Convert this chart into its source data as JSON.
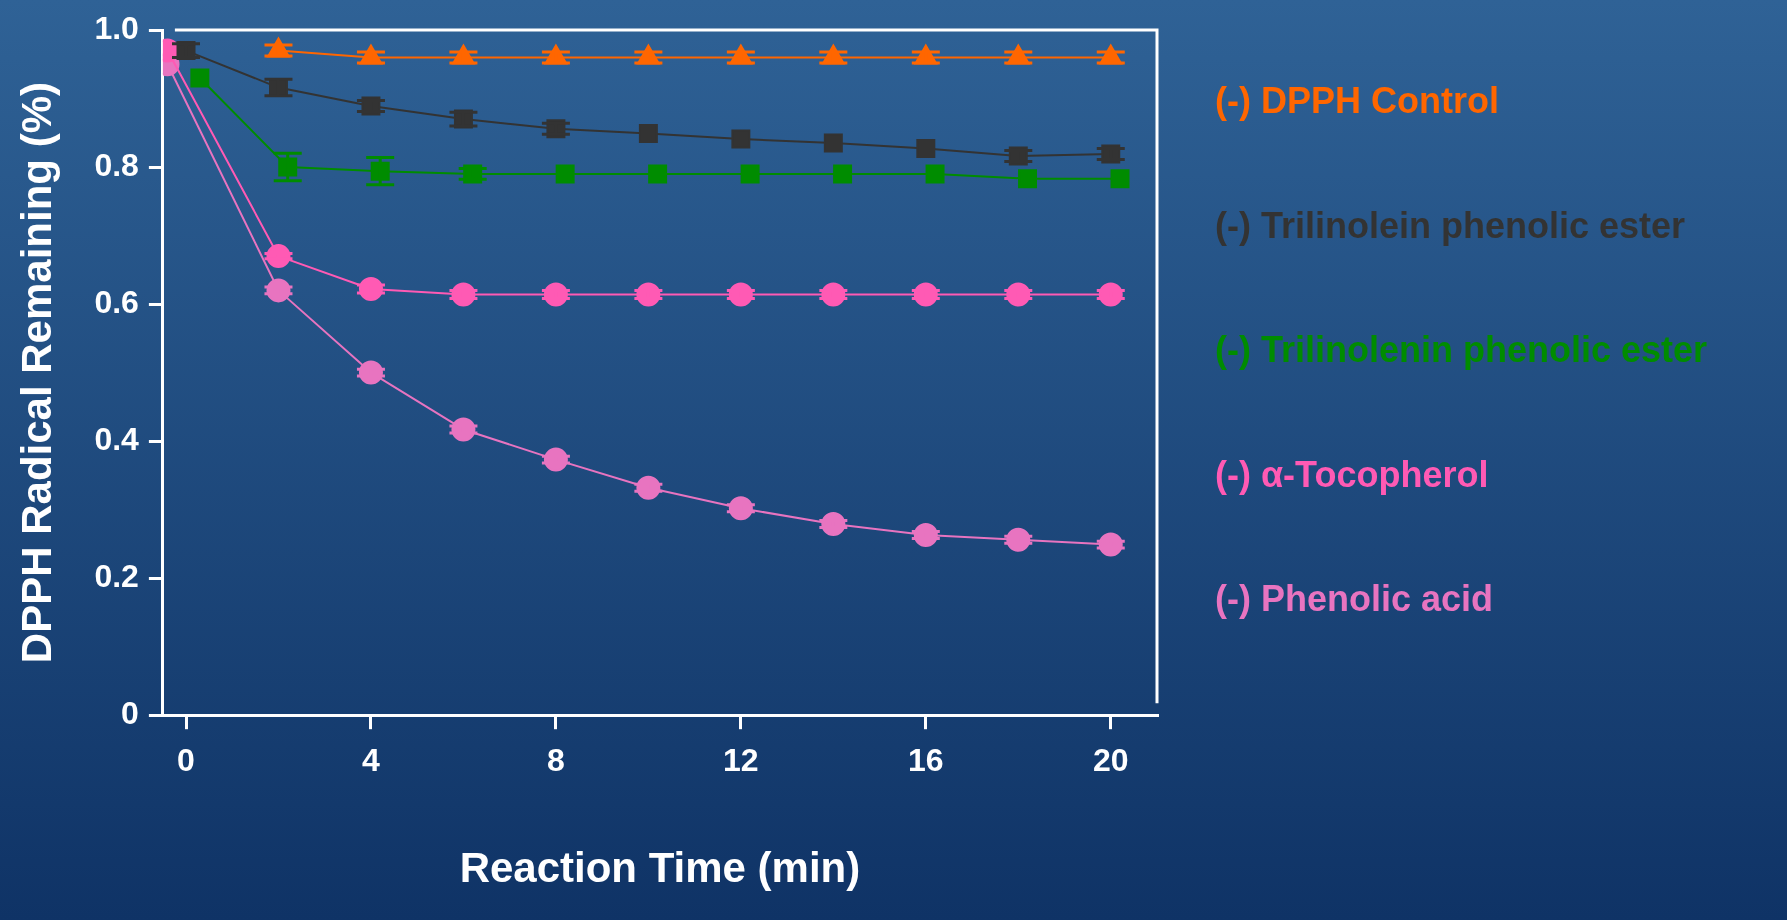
{
  "chart_data": {
    "type": "line",
    "xlabel": "Reaction Time (min)",
    "ylabel": "DPPH Radical Remaining (%)",
    "xlim": [
      -0.5,
      21
    ],
    "xticks": [
      0,
      4,
      8,
      12,
      16,
      20
    ],
    "ylim": [
      0,
      1
    ],
    "yticks": [
      0,
      0.2,
      0.4,
      0.6,
      0.8,
      {
        "value": 1,
        "label": "1.0"
      }
    ],
    "grid": false,
    "legend": "right",
    "series": [
      {
        "name": "(-) DPPH Control",
        "color": "#ff6600",
        "marker": "triangle",
        "x": [
          2,
          4,
          6,
          8,
          10,
          12,
          14,
          16,
          18,
          20
        ],
        "values": [
          0.97,
          0.96,
          0.96,
          0.96,
          0.96,
          0.96,
          0.96,
          0.96,
          0.96,
          0.96
        ],
        "errors": [
          0.008,
          0.008,
          0.008,
          0.008,
          0.008,
          0.008,
          0.008,
          0.008,
          0.008,
          0.008
        ]
      },
      {
        "name": "(-) Trilinolein phenolic ester",
        "color": "#333333",
        "marker": "square",
        "x": [
          0,
          2,
          4,
          6,
          8,
          10,
          12,
          14,
          16,
          18,
          20
        ],
        "values": [
          0.97,
          0.916,
          0.889,
          0.87,
          0.856,
          0.849,
          0.841,
          0.835,
          0.827,
          0.816,
          0.819
        ],
        "errors": [
          0.01,
          0.012,
          0.008,
          0.01,
          0.008,
          null,
          null,
          null,
          null,
          0.008,
          0.008
        ]
      },
      {
        "name": "(-) Trilinolenin phenolic ester",
        "color": "#008c00",
        "marker": "square",
        "x": [
          0.3,
          2.2,
          4.2,
          6.2,
          8.2,
          10.2,
          12.2,
          14.2,
          16.2,
          18.2,
          20.2
        ],
        "values": [
          0.93,
          0.8,
          0.794,
          0.79,
          0.79,
          0.79,
          0.79,
          0.79,
          0.79,
          0.783,
          0.783
        ],
        "errors": [
          null,
          0.02,
          0.02,
          0.008,
          null,
          null,
          null,
          null,
          null,
          null,
          null
        ]
      },
      {
        "name": "(-) α-Tocopherol",
        "color": "#ff5ab4",
        "marker": "circle",
        "x": [
          -0.4,
          2,
          4,
          6,
          8,
          10,
          12,
          14,
          16,
          18,
          20
        ],
        "values": [
          0.97,
          0.67,
          0.622,
          0.614,
          0.614,
          0.614,
          0.614,
          0.614,
          0.614,
          0.614,
          0.614
        ],
        "errors": [
          null,
          0.004,
          0.006,
          0.006,
          0.006,
          0.006,
          0.006,
          0.006,
          0.006,
          0.006,
          0.006
        ]
      },
      {
        "name": "(-) Phenolic acid",
        "color": "#e874c0",
        "marker": "circle",
        "x": [
          -0.4,
          2,
          4,
          6,
          8,
          10,
          12,
          14,
          16,
          18,
          20
        ],
        "values": [
          0.95,
          0.62,
          0.5,
          0.417,
          0.373,
          0.332,
          0.302,
          0.279,
          0.263,
          0.256,
          0.249
        ],
        "errors": [
          null,
          0.005,
          0.005,
          0.005,
          0.005,
          0.005,
          0.005,
          0.005,
          0.005,
          0.005,
          0.005
        ]
      }
    ]
  }
}
